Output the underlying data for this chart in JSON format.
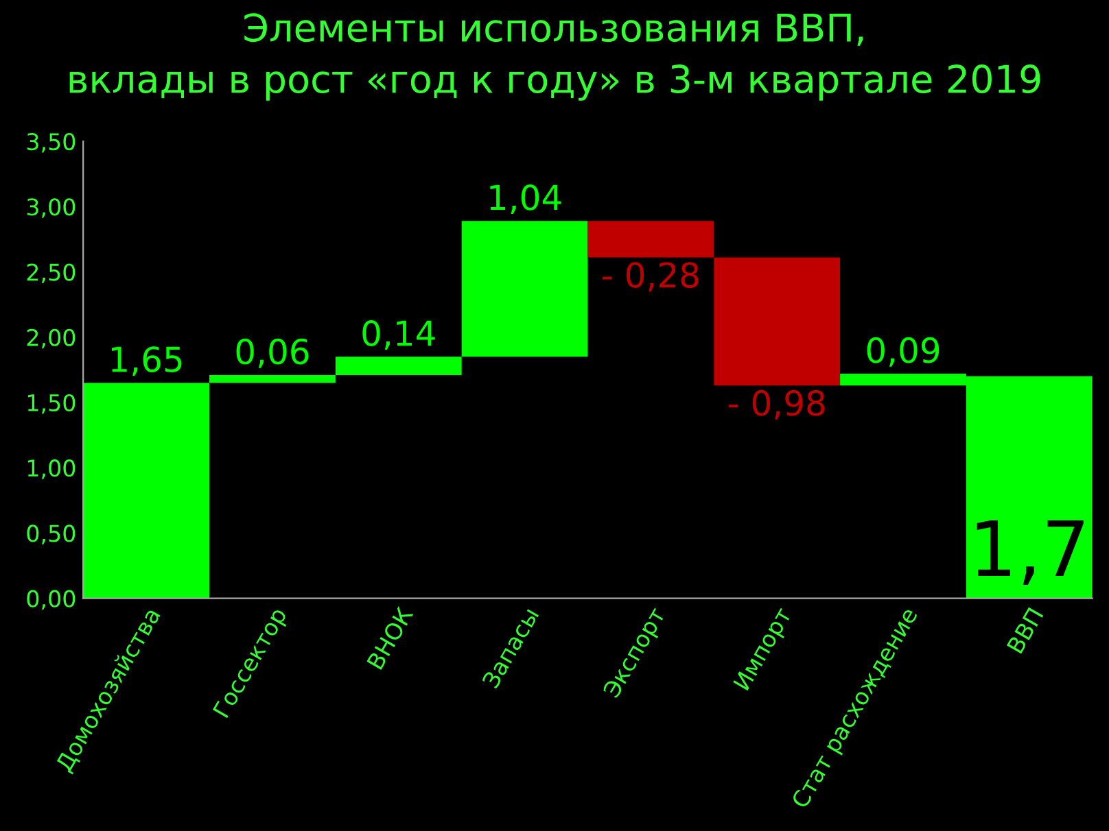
{
  "chart_data": {
    "type": "bar",
    "title": "Элементы использования ВВП,\nвклады в рост «год к году» в 3-м квартале 2019",
    "categories": [
      "Домохозяйства",
      "Госсектор",
      "ВНОК",
      "Запасы",
      "Экспорт",
      "Импорт",
      "Стат расхождение",
      "ВВП"
    ],
    "values": [
      1.65,
      0.06,
      0.14,
      1.04,
      -0.28,
      -0.98,
      0.09,
      1.7
    ],
    "base": [
      0,
      1.65,
      1.71,
      1.85,
      2.89,
      2.61,
      1.63,
      0
    ],
    "colors": [
      "#00ff00",
      "#00ff00",
      "#00ff00",
      "#00ff00",
      "#c00000",
      "#c00000",
      "#00ff00",
      "#00ff00"
    ],
    "value_labels": [
      "1,65",
      "0,06",
      "0,14",
      "1,04",
      "- 0,28",
      "- 0,98",
      "0,09",
      "1,7"
    ],
    "ylim": [
      0,
      3.5
    ],
    "yticks": [
      {
        "value": 0,
        "label": "0,00"
      },
      {
        "value": 0.5,
        "label": "0,50"
      },
      {
        "value": 1,
        "label": "1,00"
      },
      {
        "value": 1.5,
        "label": "1,50"
      },
      {
        "value": 2,
        "label": "2,00"
      },
      {
        "value": 2.5,
        "label": "2,50"
      },
      {
        "value": 3,
        "label": "3,00"
      },
      {
        "value": 3.5,
        "label": "3,50"
      }
    ],
    "grid": false
  }
}
